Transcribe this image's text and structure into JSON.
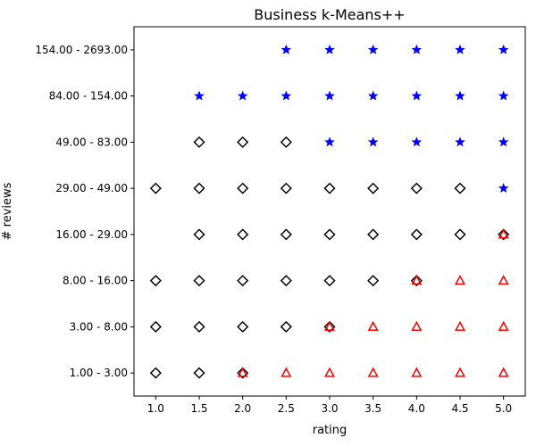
{
  "chart_data": {
    "type": "scatter",
    "title": "Business k-Means++",
    "xlabel": "rating",
    "ylabel": "# reviews",
    "x_ticks": [
      "1.0",
      "1.5",
      "2.0",
      "2.5",
      "3.0",
      "3.5",
      "4.0",
      "4.5",
      "5.0"
    ],
    "y_categories": [
      "1.00 - 3.00",
      "3.00 - 8.00",
      "8.00 - 16.00",
      "16.00 - 29.00",
      "29.00 - 49.00",
      "49.00 - 83.00",
      "84.00 - 154.00",
      "154.00 - 2693.00"
    ],
    "xlim": [
      0.75,
      5.25
    ],
    "grid": false,
    "colors": {
      "stars": "#0000ff",
      "diamonds": "#000000",
      "triangles": "#ff0000"
    },
    "series": [
      {
        "marker": "star",
        "color": "#0000ff",
        "points": [
          [
            2.5,
            "154.00 - 2693.00"
          ],
          [
            3.0,
            "154.00 - 2693.00"
          ],
          [
            3.5,
            "154.00 - 2693.00"
          ],
          [
            4.0,
            "154.00 - 2693.00"
          ],
          [
            4.5,
            "154.00 - 2693.00"
          ],
          [
            5.0,
            "154.00 - 2693.00"
          ],
          [
            1.5,
            "84.00 - 154.00"
          ],
          [
            2.0,
            "84.00 - 154.00"
          ],
          [
            2.5,
            "84.00 - 154.00"
          ],
          [
            3.0,
            "84.00 - 154.00"
          ],
          [
            3.5,
            "84.00 - 154.00"
          ],
          [
            4.0,
            "84.00 - 154.00"
          ],
          [
            4.5,
            "84.00 - 154.00"
          ],
          [
            5.0,
            "84.00 - 154.00"
          ],
          [
            3.0,
            "49.00 - 83.00"
          ],
          [
            3.5,
            "49.00 - 83.00"
          ],
          [
            4.0,
            "49.00 - 83.00"
          ],
          [
            4.5,
            "49.00 - 83.00"
          ],
          [
            5.0,
            "49.00 - 83.00"
          ],
          [
            5.0,
            "29.00 - 49.00"
          ]
        ]
      },
      {
        "marker": "diamond",
        "color": "#000000",
        "points": [
          [
            1.5,
            "49.00 - 83.00"
          ],
          [
            2.0,
            "49.00 - 83.00"
          ],
          [
            2.5,
            "49.00 - 83.00"
          ],
          [
            1.0,
            "29.00 - 49.00"
          ],
          [
            1.5,
            "29.00 - 49.00"
          ],
          [
            2.0,
            "29.00 - 49.00"
          ],
          [
            2.5,
            "29.00 - 49.00"
          ],
          [
            3.0,
            "29.00 - 49.00"
          ],
          [
            3.5,
            "29.00 - 49.00"
          ],
          [
            4.0,
            "29.00 - 49.00"
          ],
          [
            4.5,
            "29.00 - 49.00"
          ],
          [
            1.5,
            "16.00 - 29.00"
          ],
          [
            2.0,
            "16.00 - 29.00"
          ],
          [
            2.5,
            "16.00 - 29.00"
          ],
          [
            3.0,
            "16.00 - 29.00"
          ],
          [
            3.5,
            "16.00 - 29.00"
          ],
          [
            4.0,
            "16.00 - 29.00"
          ],
          [
            4.5,
            "16.00 - 29.00"
          ],
          [
            5.0,
            "16.00 - 29.00"
          ],
          [
            1.0,
            "8.00 - 16.00"
          ],
          [
            1.5,
            "8.00 - 16.00"
          ],
          [
            2.0,
            "8.00 - 16.00"
          ],
          [
            2.5,
            "8.00 - 16.00"
          ],
          [
            3.0,
            "8.00 - 16.00"
          ],
          [
            3.5,
            "8.00 - 16.00"
          ],
          [
            4.0,
            "8.00 - 16.00"
          ],
          [
            1.0,
            "3.00 - 8.00"
          ],
          [
            1.5,
            "3.00 - 8.00"
          ],
          [
            2.0,
            "3.00 - 8.00"
          ],
          [
            2.5,
            "3.00 - 8.00"
          ],
          [
            3.0,
            "3.00 - 8.00"
          ],
          [
            1.0,
            "1.00 - 3.00"
          ],
          [
            1.5,
            "1.00 - 3.00"
          ],
          [
            2.0,
            "1.00 - 3.00"
          ]
        ]
      },
      {
        "marker": "triangle",
        "color": "#ff0000",
        "points": [
          [
            5.0,
            "16.00 - 29.00"
          ],
          [
            4.0,
            "8.00 - 16.00"
          ],
          [
            4.5,
            "8.00 - 16.00"
          ],
          [
            5.0,
            "8.00 - 16.00"
          ],
          [
            3.0,
            "3.00 - 8.00"
          ],
          [
            3.5,
            "3.00 - 8.00"
          ],
          [
            4.0,
            "3.00 - 8.00"
          ],
          [
            4.5,
            "3.00 - 8.00"
          ],
          [
            5.0,
            "3.00 - 8.00"
          ],
          [
            2.0,
            "1.00 - 3.00"
          ],
          [
            2.5,
            "1.00 - 3.00"
          ],
          [
            3.0,
            "1.00 - 3.00"
          ],
          [
            3.5,
            "1.00 - 3.00"
          ],
          [
            4.0,
            "1.00 - 3.00"
          ],
          [
            4.5,
            "1.00 - 3.00"
          ],
          [
            5.0,
            "1.00 - 3.00"
          ]
        ]
      }
    ]
  }
}
